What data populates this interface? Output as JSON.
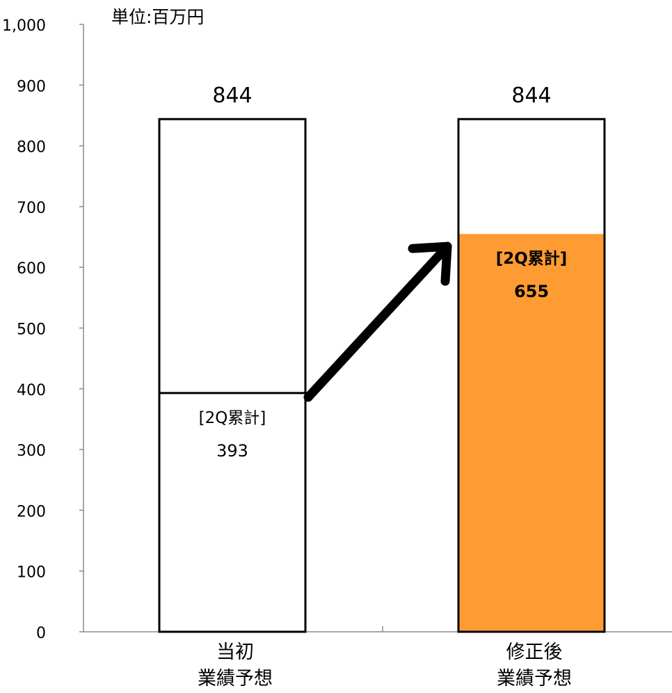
{
  "chart_data": {
    "type": "bar",
    "unit_label": "単位:百万円",
    "categories": [
      [
        "当初",
        "業績予想"
      ],
      [
        "修正後",
        "業績予想"
      ]
    ],
    "totals": [
      844,
      844
    ],
    "segment_label": "[2Q累計]",
    "segment_values": [
      393,
      655
    ],
    "segment_colors": [
      "#ffffff",
      "#ff9b33"
    ],
    "ylim": [
      0,
      1000
    ],
    "yticks": [
      0,
      100,
      200,
      300,
      400,
      500,
      600,
      700,
      800,
      900,
      1000
    ],
    "ytick_labels": [
      "0",
      "100",
      "200",
      "300",
      "400",
      "500",
      "600",
      "700",
      "800",
      "900",
      "1,000"
    ],
    "grid": false,
    "annotation": "arrow from 当初 2Q累計 to 修正後 2Q累計"
  }
}
